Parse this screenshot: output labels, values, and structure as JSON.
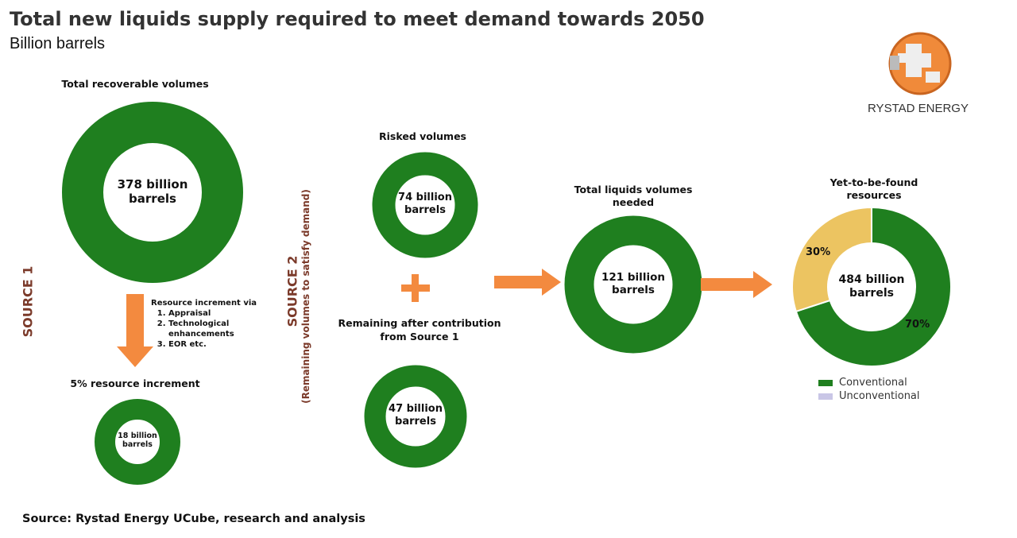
{
  "header": {
    "title": "Total new liquids supply required to meet demand towards 2050",
    "subtitle": "Billion barrels"
  },
  "logo": {
    "text": "RYSTAD ENERGY"
  },
  "colors": {
    "green": "#1f7f1f",
    "orange": "#f38a3f",
    "yellow": "#ecc461",
    "lavender": "#c9c6e6",
    "source_label": "#7b3a2a"
  },
  "source1": {
    "label": "SOURCE 1",
    "total": {
      "heading": "Total recoverable volumes",
      "value": "378 billion barrels"
    },
    "increment_note": {
      "heading": "Resource increment via",
      "items": [
        "Appraisal",
        "Technological enhancements",
        "EOR etc."
      ]
    },
    "increment": {
      "heading": "5% resource increment",
      "value": "18 billion barrels"
    }
  },
  "source2": {
    "label": "SOURCE 2",
    "sublabel": "(Remaining volumes to satisfy demand)",
    "risked": {
      "heading": "Risked volumes",
      "value": "74 billion barrels"
    },
    "plus": "+",
    "remaining": {
      "heading": "Remaining after contribution from Source 1",
      "value": "47 billion barrels"
    }
  },
  "total_needed": {
    "heading": "Total liquids volumes needed",
    "value": "121 billion barrels"
  },
  "yet_to_find": {
    "heading": "Yet-to-be-found resources",
    "value": "484 billion barrels"
  },
  "chart_data": {
    "type": "pie",
    "title": "Yet-to-be-found resources",
    "center_label": "484 billion barrels",
    "slices": [
      {
        "name": "Conventional",
        "value": 70,
        "label": "70%",
        "color": "#1f7f1f"
      },
      {
        "name": "Unconventional",
        "value": 30,
        "label": "30%",
        "color": "#ecc461"
      }
    ],
    "legend": [
      {
        "name": "Conventional",
        "color": "#1f7f1f"
      },
      {
        "name": "Unconventional",
        "color": "#c9c6e6"
      }
    ],
    "legend_placement": "bottom"
  },
  "footer": {
    "source": "Source: Rystad Energy UCube, research and analysis"
  }
}
